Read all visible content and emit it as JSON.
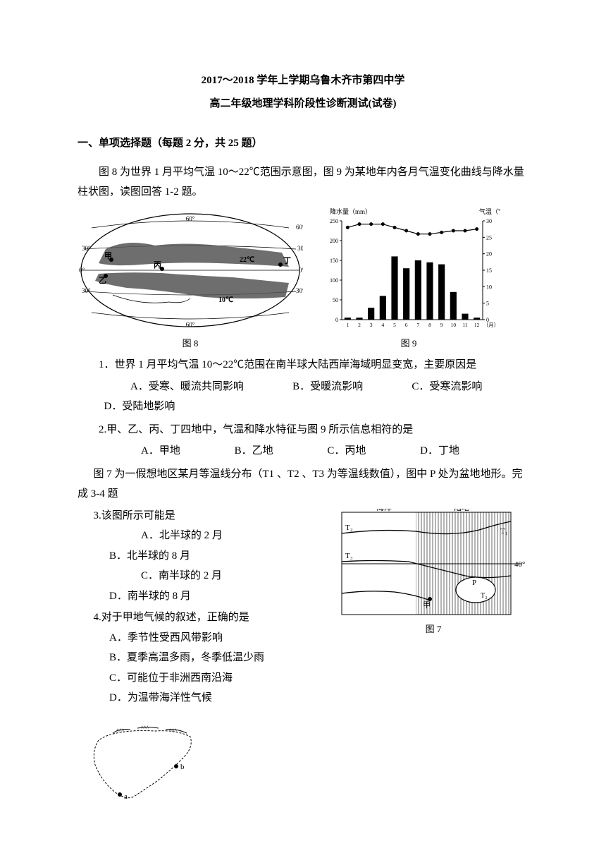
{
  "header": {
    "line1": "2017～2018 学年上学期乌鲁木齐市第四中学",
    "line2": "高二年级地理学科阶段性诊断测试(试卷)"
  },
  "section1": {
    "title": "一、单项选择题（每题 2 分，共 25 题）",
    "intro1": "图 8 为世界 1 月平均气温 10～22℃范围示意图，图 9 为某地年内各月气温变化曲线与降水量柱状图，读图回答 1-2 题。"
  },
  "fig8": {
    "caption": "图 8",
    "labels": {
      "top60": "60°",
      "n30": "30°",
      "eq": "0°",
      "s30": "30°",
      "s60": "60°",
      "t22": "22℃",
      "t10": "10℃"
    },
    "markers": {
      "jia": "甲",
      "yi": "乙",
      "bing": "丙",
      "ding": "丁"
    }
  },
  "fig9": {
    "caption": "图 9",
    "yLeftLabel": "降水量（mm）",
    "yRightLabel": "气温（℃）",
    "yLeftMax": 250,
    "yLeftStep": 50,
    "yRightMax": 30,
    "yRightStep": 5,
    "months": [
      "1",
      "2",
      "3",
      "4",
      "5",
      "6",
      "7",
      "8",
      "9",
      "10",
      "11",
      "12",
      "（月）"
    ],
    "precip": [
      5,
      5,
      30,
      60,
      160,
      130,
      150,
      145,
      140,
      70,
      15,
      5
    ],
    "temp": [
      28,
      29,
      29,
      29,
      28,
      27,
      26,
      26,
      26.5,
      27,
      27,
      27.5
    ],
    "barColor": "#000000",
    "lineColor": "#000000",
    "axisColor": "#000000"
  },
  "q1": {
    "text": "1．世界 1 月平均气温 10～22℃范围在南半球大陆西岸海域明显变宽，主要原因是",
    "A": "A．受寒、暖流共同影响",
    "B": "B．受暖流影响",
    "C": "C．受寒流影响",
    "D": "D．受陆地影响"
  },
  "q2": {
    "text": "2.甲、乙、丙、丁四地中，气温和降水特征与图 9 所示信息相符的是",
    "A": "A．甲地",
    "B": "B．乙地",
    "C": "C．丙地",
    "D": "D．丁地"
  },
  "intro34": "图 7 为一假想地区某月等温线分布（T1 、T2 、T3  为等温线数值），图中 P 处为盆地地形。完成 3-4 题",
  "fig7": {
    "caption": "图 7",
    "ocean": "海洋",
    "land": "陆地",
    "t1": "T₁",
    "t2": "T₂",
    "t3": "T₃",
    "p": "P",
    "jia": "甲",
    "lat40": "40°",
    "landFill": "vertical-stripes",
    "lineColor": "#000000"
  },
  "q3": {
    "text": "3.该图所示可能是",
    "A": "A．北半球的 2 月",
    "B": "B．北半球的 8 月",
    "C": "C．南半球的 2 月",
    "D": "D．南半球的 8 月"
  },
  "q4": {
    "text": "4.对于甲地气候的叙述，正确的是",
    "A": "A．季节性受西风带影响",
    "B": "B．夏季高温多雨，冬季低温少雨",
    "C": "C．可能位于非洲西南沿海",
    "D": "D．为温带海洋性气候"
  },
  "bottomMap": {
    "a": "a",
    "b": "b"
  }
}
